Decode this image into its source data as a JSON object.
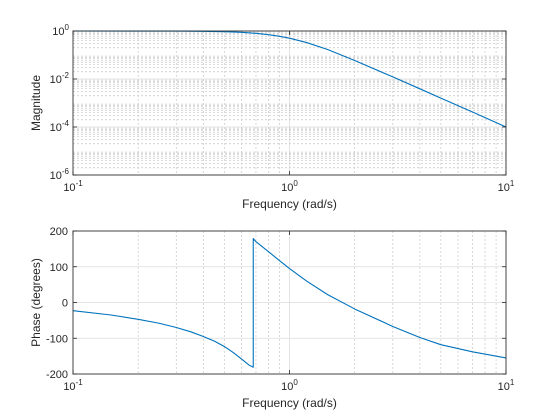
{
  "chart_data": [
    {
      "type": "line",
      "xscale": "log",
      "yscale": "log",
      "xlabel": "Frequency (rad/s)",
      "ylabel": "Magnitude",
      "xlim": [
        0.1,
        10
      ],
      "ylim": [
        1e-06,
        1
      ],
      "grid": true,
      "xticks": [
        {
          "value": 0.1,
          "base": "10",
          "exp": "-1"
        },
        {
          "value": 1,
          "base": "10",
          "exp": "0"
        },
        {
          "value": 10,
          "base": "10",
          "exp": "1"
        }
      ],
      "yticks": [
        {
          "value": 1e-06,
          "base": "10",
          "exp": "-6"
        },
        {
          "value": 0.0001,
          "base": "10",
          "exp": "-4"
        },
        {
          "value": 0.01,
          "base": "10",
          "exp": "-2"
        },
        {
          "value": 1,
          "base": "10",
          "exp": "0"
        }
      ],
      "series": [
        {
          "color": "#0072bd",
          "x": [
            0.1,
            0.2,
            0.3,
            0.4,
            0.5,
            0.6,
            0.7,
            0.8,
            0.9,
            1,
            1.2,
            1.5,
            2,
            3,
            4,
            5,
            7,
            10
          ],
          "y": [
            1.0,
            0.998,
            0.99,
            0.97,
            0.94,
            0.88,
            0.8,
            0.7,
            0.6,
            0.5,
            0.33,
            0.17,
            0.059,
            0.0122,
            0.0039,
            0.0016,
            0.00042,
            0.0001
          ]
        }
      ]
    },
    {
      "type": "line",
      "xscale": "log",
      "yscale": "linear",
      "xlabel": "Frequency (rad/s)",
      "ylabel": "Phase (degrees)",
      "xlim": [
        0.1,
        10
      ],
      "ylim": [
        -200,
        200
      ],
      "grid": true,
      "xticks": [
        {
          "value": 0.1,
          "base": "10",
          "exp": "-1"
        },
        {
          "value": 1,
          "base": "10",
          "exp": "0"
        },
        {
          "value": 10,
          "base": "10",
          "exp": "1"
        }
      ],
      "yticks": [
        {
          "value": -200,
          "label": "-200"
        },
        {
          "value": -100,
          "label": "-100"
        },
        {
          "value": 0,
          "label": "0"
        },
        {
          "value": 100,
          "label": "100"
        },
        {
          "value": 200,
          "label": "200"
        }
      ],
      "series": [
        {
          "color": "#0072bd",
          "x": [
            0.1,
            0.15,
            0.2,
            0.25,
            0.3,
            0.35,
            0.4,
            0.45,
            0.5,
            0.55,
            0.6,
            0.65,
            0.68,
            0.68,
            0.7,
            0.8,
            0.9,
            1.0,
            1.2,
            1.5,
            2,
            3,
            4,
            5,
            7,
            10
          ],
          "y": [
            -23,
            -35,
            -47,
            -58,
            -70,
            -82,
            -95,
            -108,
            -123,
            -140,
            -158,
            -175,
            -181,
            179,
            170,
            142,
            117,
            95,
            60,
            22,
            -18,
            -67,
            -98,
            -118,
            -138,
            -155
          ]
        }
      ]
    }
  ]
}
